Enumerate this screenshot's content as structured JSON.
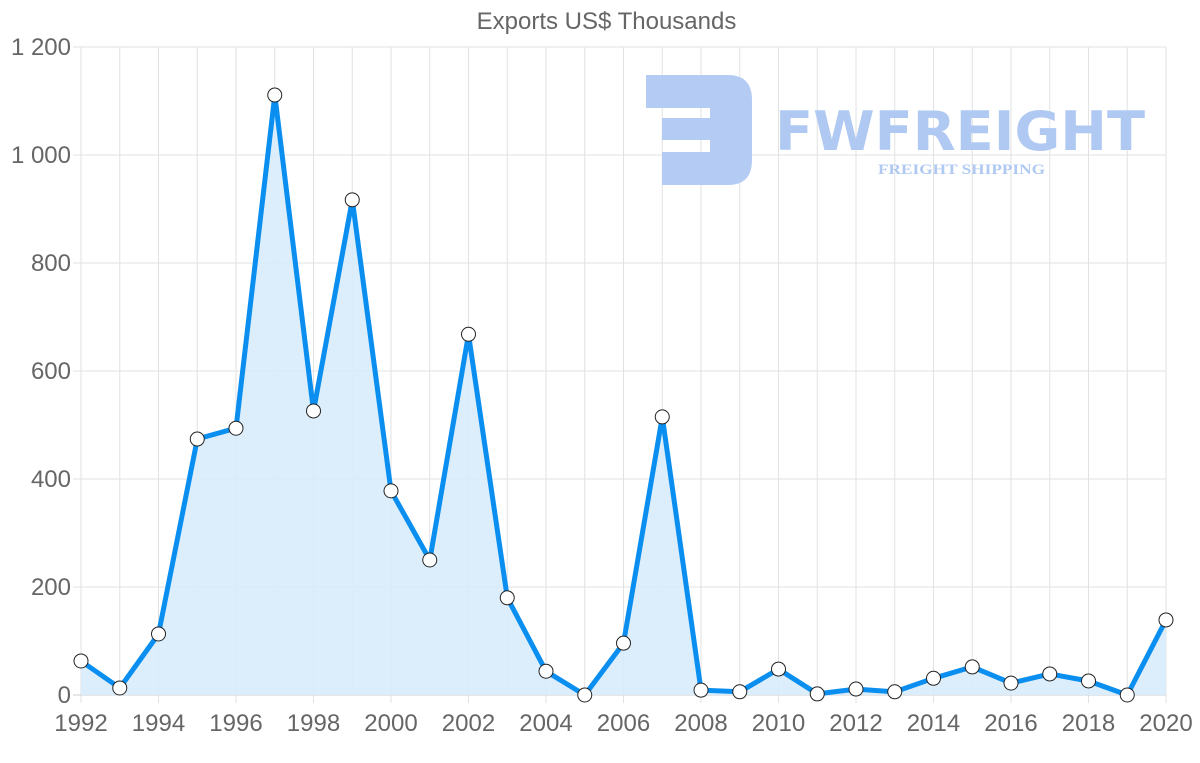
{
  "chart_data": {
    "type": "area",
    "title": "Exports US$ Thousands",
    "xlabel": "",
    "ylabel": "",
    "ylim": [
      0,
      1200
    ],
    "yticks": [
      0,
      200,
      400,
      600,
      800,
      1000,
      1200
    ],
    "ytick_labels": [
      "0",
      "200",
      "400",
      "600",
      "800",
      "1 000",
      "1 200"
    ],
    "xticks": [
      1992,
      1994,
      1996,
      1998,
      2000,
      2002,
      2004,
      2006,
      2008,
      2010,
      2012,
      2014,
      2016,
      2018,
      2020
    ],
    "grid": true,
    "legend": null,
    "x": [
      1992,
      1993,
      1994,
      1995,
      1996,
      1997,
      1998,
      1999,
      2000,
      2001,
      2002,
      2003,
      2004,
      2005,
      2006,
      2007,
      2008,
      2009,
      2010,
      2011,
      2012,
      2013,
      2014,
      2015,
      2016,
      2017,
      2018,
      2019,
      2020
    ],
    "series": [
      {
        "name": "Exports US$ Thousands",
        "values": [
          63,
          13,
          113,
          474,
          494,
          1111,
          526,
          917,
          378,
          250,
          668,
          180,
          44,
          0,
          96,
          515,
          9,
          6,
          48,
          2,
          11,
          6,
          31,
          52,
          22,
          39,
          26,
          0,
          139
        ],
        "line_color": "#0a8ff0",
        "fill_color": "#d8ecfc"
      }
    ]
  },
  "watermark": {
    "brand": "FWFREIGHT",
    "tagline": "FREIGHT SHIPPING",
    "color": "#b0c9f2"
  }
}
